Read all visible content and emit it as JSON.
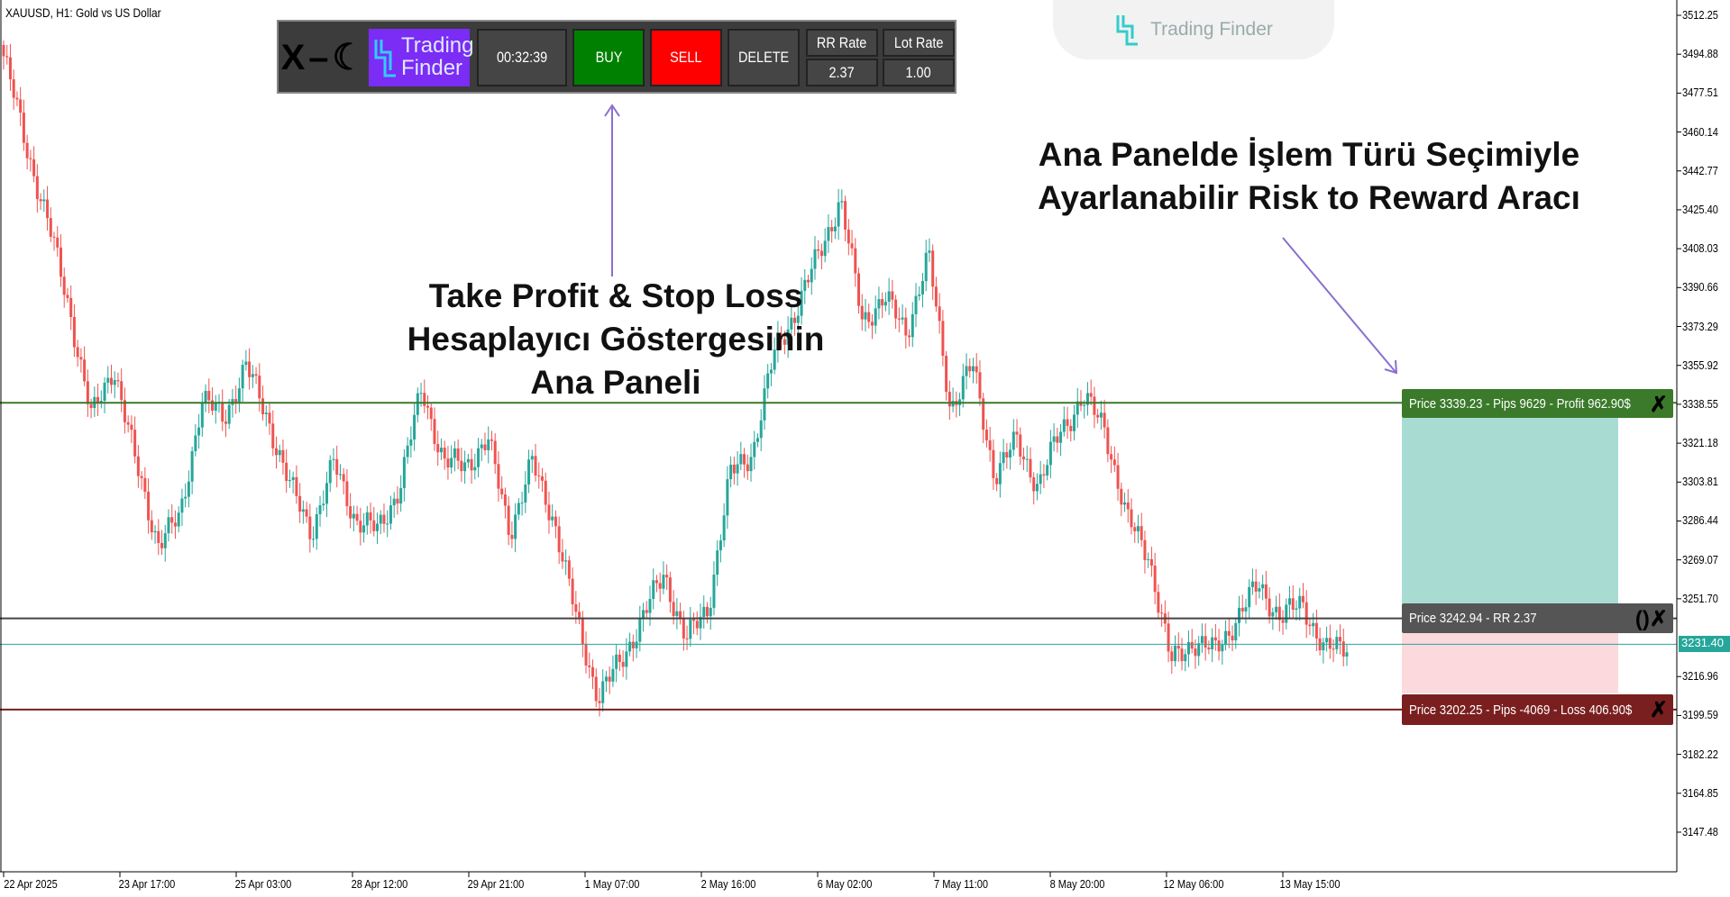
{
  "symbol_label": "XAUUSD, H1:  Gold vs US Dollar",
  "watermark": "Trading Finder",
  "panel": {
    "controls": [
      "X",
      "–",
      "☾"
    ],
    "logo_line1": "Trading",
    "logo_line2": "Finder",
    "timer": "00:32:39",
    "buy_label": "BUY",
    "sell_label": "SELL",
    "delete_label": "DELETE",
    "rr_label": "RR Rate",
    "rr_value": "2.37",
    "lot_label": "Lot Rate",
    "lot_value": "1.00",
    "colors": {
      "buy": "#008000",
      "sell": "#ff0000",
      "logo": "#7b2cf5"
    }
  },
  "annotations": {
    "left": [
      "Take Profit & Stop Loss",
      "Hesaplayıcı Göstergesinin",
      "Ana Paneli"
    ],
    "right": [
      "Ana Panelde İşlem Türü Seçimiyle",
      "Ayarlanabilir Risk to Reward Aracı"
    ],
    "arrow_color": "#8a6fd0"
  },
  "levels": {
    "tp": {
      "price": 3339.23,
      "label": "Price 3339.23 - Pips 9629 - Profit 962.90$",
      "color": "#3a7a2a"
    },
    "entry": {
      "price": 3242.94,
      "label": "Price 3242.94 - RR 2.37",
      "color": "#555555"
    },
    "sl": {
      "price": 3202.25,
      "label": "Price 3202.25 - Pips -4069 - Loss 406.90$",
      "color": "#7a1f1f"
    },
    "current": {
      "price": 3231.4,
      "label": "3231.40",
      "color": "#26a69a"
    }
  },
  "chart_data": {
    "type": "candlestick",
    "up_color": "#26a69a",
    "down_color": "#ef5350",
    "ylim": [
      3140,
      3518
    ],
    "y_ticks": [
      "3512.25",
      "3494.88",
      "3477.51",
      "3460.14",
      "3442.77",
      "3425.40",
      "3408.03",
      "3390.66",
      "3373.29",
      "3355.92",
      "3338.55",
      "3321.18",
      "3303.81",
      "3286.44",
      "3269.07",
      "3251.70",
      "3216.96",
      "3199.59",
      "3182.22",
      "3164.85",
      "3147.48"
    ],
    "x_ticks": [
      "22 Apr 2025",
      "23 Apr 17:00",
      "25 Apr 03:00",
      "28 Apr 12:00",
      "29 Apr 21:00",
      "1 May 07:00",
      "2 May 16:00",
      "6 May 02:00",
      "7 May 11:00",
      "8 May 20:00",
      "12 May 06:00",
      "13 May 15:00"
    ],
    "approx_closes": [
      3494,
      3455,
      3420,
      3381,
      3332,
      3356,
      3312,
      3277,
      3287,
      3341,
      3332,
      3356,
      3332,
      3302,
      3282,
      3312,
      3287,
      3282,
      3302,
      3346,
      3312,
      3312,
      3322,
      3282,
      3312,
      3287,
      3243,
      3208,
      3223,
      3243,
      3263,
      3233,
      3248,
      3307,
      3317,
      3361,
      3381,
      3405,
      3430,
      3376,
      3386,
      3371,
      3405,
      3337,
      3356,
      3307,
      3322,
      3302,
      3327,
      3341,
      3329,
      3287,
      3272,
      3223,
      3233,
      3228,
      3243,
      3258,
      3243,
      3250,
      3228,
      3231.4
    ]
  }
}
